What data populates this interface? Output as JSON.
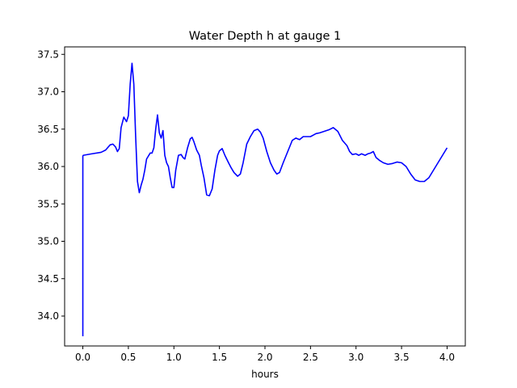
{
  "chart_data": {
    "type": "line",
    "title": "Water Depth h at gauge 1",
    "xlabel": "hours",
    "ylabel": "",
    "xlim": [
      -0.2,
      4.2
    ],
    "ylim": [
      33.6,
      37.6
    ],
    "xticks": [
      0.0,
      0.5,
      1.0,
      1.5,
      2.0,
      2.5,
      3.0,
      3.5,
      4.0
    ],
    "xtick_labels": [
      "0.0",
      "0.5",
      "1.0",
      "1.5",
      "2.0",
      "2.5",
      "3.0",
      "3.5",
      "4.0"
    ],
    "yticks": [
      34.0,
      34.5,
      35.0,
      35.5,
      36.0,
      36.5,
      37.0,
      37.5
    ],
    "ytick_labels": [
      "34.0",
      "34.5",
      "35.0",
      "35.5",
      "36.0",
      "36.5",
      "37.0",
      "37.5"
    ],
    "grid": false,
    "legend": "none",
    "series": [
      {
        "color": "#0000ff",
        "x": [
          0.0,
          0.0,
          0.005,
          0.1,
          0.2,
          0.25,
          0.3,
          0.33,
          0.36,
          0.38,
          0.4,
          0.42,
          0.45,
          0.48,
          0.5,
          0.52,
          0.54,
          0.56,
          0.58,
          0.6,
          0.62,
          0.64,
          0.66,
          0.68,
          0.7,
          0.74,
          0.76,
          0.78,
          0.8,
          0.82,
          0.84,
          0.86,
          0.88,
          0.9,
          0.92,
          0.94,
          0.96,
          0.98,
          1.0,
          1.02,
          1.05,
          1.08,
          1.1,
          1.12,
          1.15,
          1.18,
          1.2,
          1.22,
          1.25,
          1.28,
          1.3,
          1.33,
          1.36,
          1.39,
          1.42,
          1.45,
          1.48,
          1.5,
          1.53,
          1.56,
          1.58,
          1.6,
          1.63,
          1.66,
          1.7,
          1.73,
          1.76,
          1.8,
          1.84,
          1.88,
          1.92,
          1.95,
          1.98,
          2.02,
          2.06,
          2.1,
          2.13,
          2.16,
          2.2,
          2.25,
          2.3,
          2.34,
          2.38,
          2.42,
          2.46,
          2.5,
          2.53,
          2.56,
          2.6,
          2.65,
          2.7,
          2.75,
          2.8,
          2.85,
          2.9,
          2.93,
          2.96,
          3.0,
          3.03,
          3.06,
          3.1,
          3.13,
          3.16,
          3.19,
          3.22,
          3.26,
          3.3,
          3.35,
          3.4,
          3.45,
          3.5,
          3.55,
          3.6,
          3.65,
          3.7,
          3.75,
          3.8,
          3.85,
          3.9,
          3.95,
          4.0
        ],
        "y": [
          33.73,
          36.14,
          36.15,
          36.17,
          36.19,
          36.22,
          36.29,
          36.3,
          36.26,
          36.2,
          36.24,
          36.52,
          36.66,
          36.6,
          36.68,
          37.1,
          37.38,
          37.1,
          36.4,
          35.8,
          35.65,
          35.75,
          35.83,
          35.95,
          36.1,
          36.18,
          36.18,
          36.25,
          36.5,
          36.69,
          36.45,
          36.38,
          36.48,
          36.15,
          36.05,
          36.0,
          35.85,
          35.72,
          35.72,
          35.95,
          36.15,
          36.16,
          36.12,
          36.1,
          36.25,
          36.37,
          36.39,
          36.33,
          36.22,
          36.15,
          36.02,
          35.85,
          35.62,
          35.61,
          35.7,
          35.95,
          36.15,
          36.21,
          36.24,
          36.15,
          36.1,
          36.05,
          35.98,
          35.92,
          35.87,
          35.9,
          36.05,
          36.3,
          36.4,
          36.48,
          36.5,
          36.46,
          36.38,
          36.2,
          36.05,
          35.95,
          35.9,
          35.92,
          36.05,
          36.2,
          36.35,
          36.38,
          36.36,
          36.4,
          36.4,
          36.4,
          36.42,
          36.44,
          36.45,
          36.47,
          36.49,
          36.52,
          36.47,
          36.35,
          36.28,
          36.2,
          36.16,
          36.17,
          36.15,
          36.17,
          36.15,
          36.17,
          36.18,
          36.2,
          36.12,
          36.08,
          36.05,
          36.03,
          36.04,
          36.06,
          36.05,
          36.0,
          35.9,
          35.82,
          35.8,
          35.8,
          35.85,
          35.95,
          36.05,
          36.15,
          36.25
        ]
      }
    ]
  }
}
